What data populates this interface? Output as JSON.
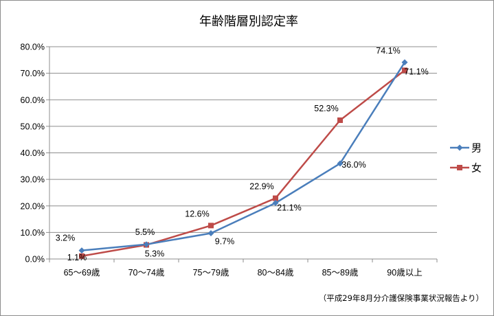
{
  "chart_data": {
    "type": "line",
    "title": "年齢階層別認定率",
    "categories": [
      "65～69歳",
      "70～74歳",
      "75～79歳",
      "80～84歳",
      "85～89歳",
      "90歳以上"
    ],
    "series": [
      {
        "name": "男",
        "color": "#4a7ebb",
        "marker": "diamond",
        "values": [
          3.2,
          5.5,
          9.7,
          21.1,
          36.0,
          74.1
        ],
        "labels": [
          "3.2%",
          "5.5%",
          "9.7%",
          "21.1%",
          "36.0%",
          "74.1%"
        ]
      },
      {
        "name": "女",
        "color": "#be4b48",
        "marker": "square",
        "values": [
          1.1,
          5.3,
          12.6,
          22.9,
          52.3,
          71.1
        ],
        "labels": [
          "1.1%",
          "5.3%",
          "12.6%",
          "22.9%",
          "52.3%",
          "71.1%"
        ]
      }
    ],
    "ylim": [
      0,
      80
    ],
    "yticks": [
      "0.0%",
      "10.0%",
      "20.0%",
      "30.0%",
      "40.0%",
      "50.0%",
      "60.0%",
      "70.0%",
      "80.0%"
    ],
    "grid": true,
    "legend_position": "right",
    "source_note": "（平成29年8月分介護保険事業状況報告より）"
  }
}
